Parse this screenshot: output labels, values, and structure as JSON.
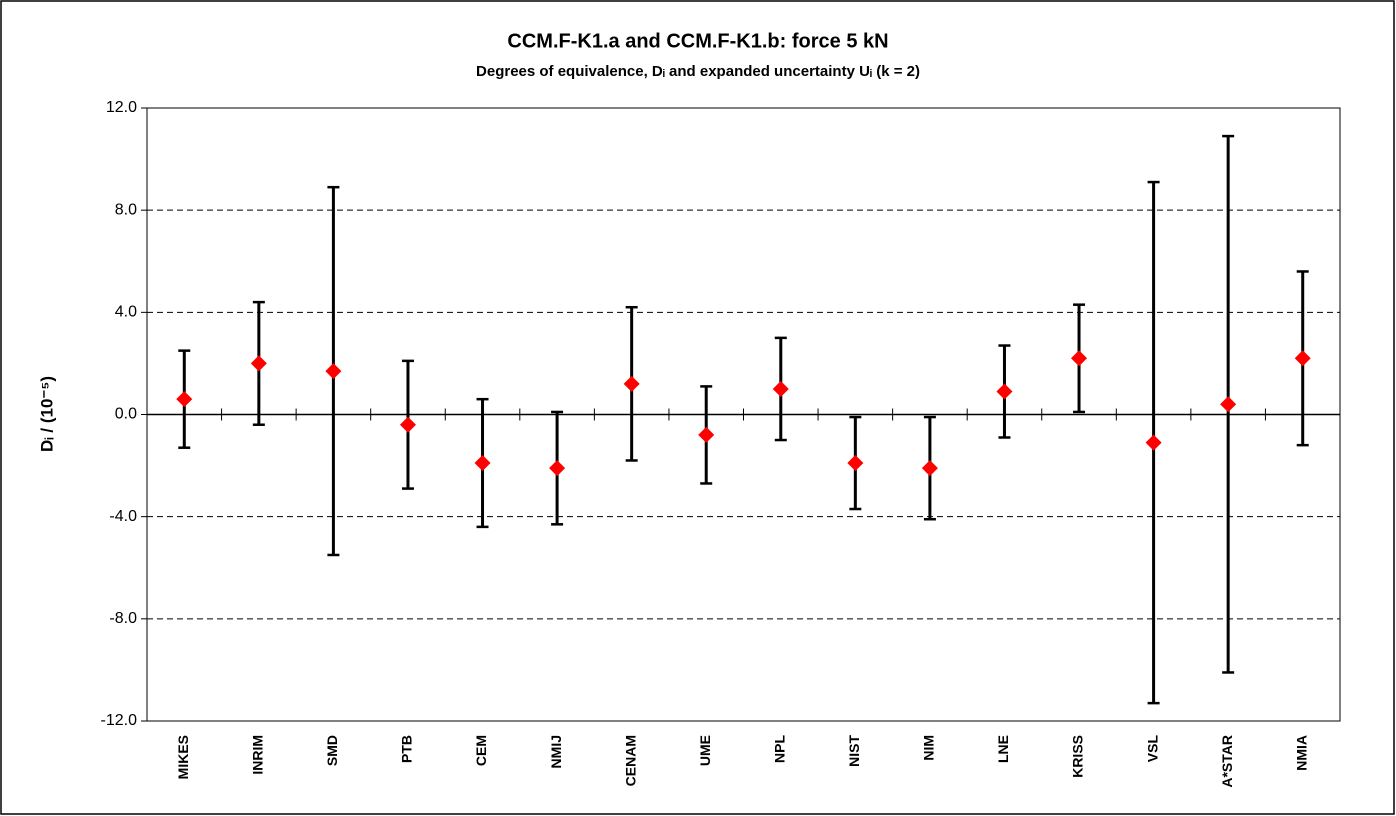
{
  "chart_data": {
    "type": "errorbar",
    "title": "CCM.F-K1.a and CCM.F-K1.b: force 5 kN",
    "subtitle": "Degrees of equivalence, Dᵢ  and expanded uncertainty Uᵢ  (k = 2)",
    "y_label": "Dᵢ  / (10⁻⁵)",
    "categories": [
      "MIKES",
      "INRIM",
      "SMD",
      "PTB",
      "CEM",
      "NMIJ",
      "CENAM",
      "UME",
      "NPL",
      "NIST",
      "NIM",
      "LNE",
      "KRISS",
      "VSL",
      "A*STAR",
      "NMIA"
    ],
    "series": [
      {
        "color": "#ff0000",
        "values": [
          0.6,
          2.0,
          1.7,
          -0.4,
          -1.9,
          -2.1,
          1.2,
          -0.8,
          1.0,
          -1.9,
          -2.1,
          0.9,
          2.2,
          -1.1,
          0.4,
          2.2
        ],
        "errors": [
          1.9,
          2.4,
          7.2,
          2.5,
          2.5,
          2.2,
          3.0,
          1.9,
          2.0,
          1.8,
          2.0,
          1.8,
          2.1,
          10.2,
          10.5,
          3.4
        ]
      }
    ],
    "ylim": [
      -12,
      12
    ],
    "yticks": [
      {
        "value": -12,
        "label": "-12.0"
      },
      {
        "value": -8,
        "label": "-8.0"
      },
      {
        "value": -4,
        "label": "-4.0"
      },
      {
        "value": 0,
        "label": "0.0"
      },
      {
        "value": 4,
        "label": "4.0"
      },
      {
        "value": 8,
        "label": "8.0"
      },
      {
        "value": 12,
        "label": "12.0"
      }
    ],
    "grid": true
  }
}
